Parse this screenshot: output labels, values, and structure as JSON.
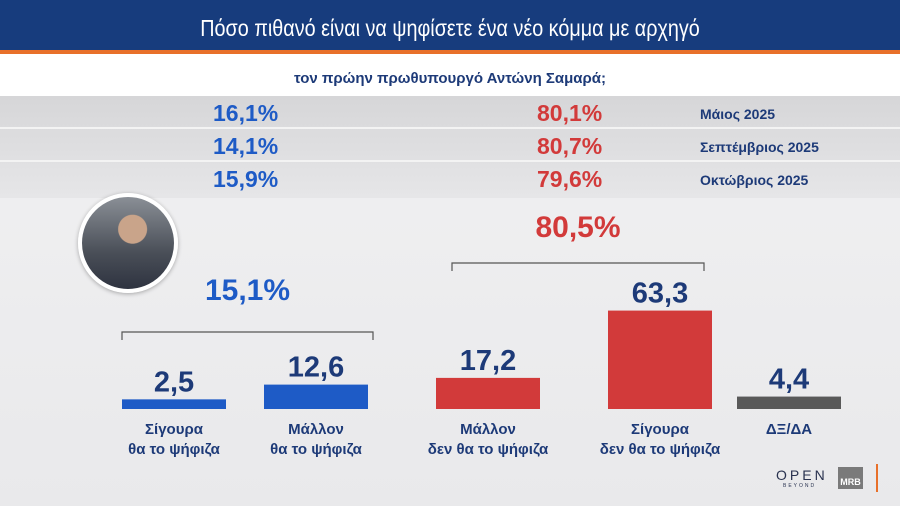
{
  "header": {
    "title": "Πόσο πιθανό είναι να ψηφίσετε ένα νέο κόμμα με αρχηγό",
    "subtitle": "τον πρώην πρωθυπουργό Αντώνη Σαμαρά;"
  },
  "history": [
    {
      "yes": "16,1%",
      "no": "80,1%",
      "date": "Μάιος 2025"
    },
    {
      "yes": "14,1%",
      "no": "80,7%",
      "date": "Σεπτέμβριος 2025"
    },
    {
      "yes": "15,9%",
      "no": "79,6%",
      "date": "Οκτώβριος 2025"
    }
  ],
  "chart_data": {
    "type": "bar",
    "categories": [
      "Σίγουρα θα το ψήφιζα",
      "Μάλλον θα το ψήφιζα",
      "Μάλλον δεν θα το ψήφιζα",
      "Σίγουρα δεν θα το ψήφιζα",
      "ΔΞ/ΔΑ"
    ],
    "category_lines": [
      [
        "Σίγουρα",
        "θα το ψήφιζα"
      ],
      [
        "Μάλλον",
        "θα το ψήφιζα"
      ],
      [
        "Μάλλον",
        "δεν θα το ψήφιζα"
      ],
      [
        "Σίγουρα",
        "δεν θα το ψήφιζα"
      ],
      [
        "ΔΞ/ΔΑ"
      ]
    ],
    "values": [
      2.5,
      12.6,
      17.2,
      63.3,
      4.4
    ],
    "value_labels": [
      "2,5",
      "12,6",
      "17,2",
      "63,3",
      "4,4"
    ],
    "colors": [
      "#1e5bc6",
      "#1e5bc6",
      "#d23a3a",
      "#d23a3a",
      "#595959"
    ],
    "groups": [
      {
        "label": "15,1%",
        "color": "#1e5bc6"
      },
      {
        "label": "80,5%",
        "color": "#d23a3a"
      }
    ]
  },
  "logos": {
    "open": "OPEN",
    "beyond": "BEYOND",
    "mrb": "MRB"
  },
  "colors": {
    "header": "#173c7d",
    "accent": "#e8702a",
    "blue": "#1e5bc6",
    "red": "#d23a3a",
    "navy": "#1d3a78"
  }
}
